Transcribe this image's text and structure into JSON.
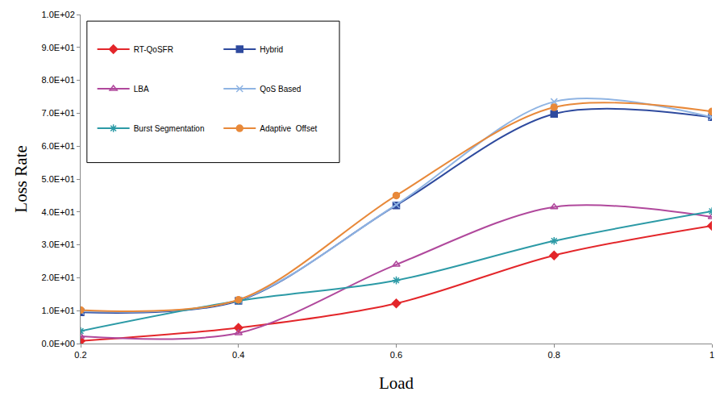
{
  "chart_data": {
    "type": "line",
    "x_label": "Load",
    "y_label": "Loss Rate",
    "x": [
      0.2,
      0.4,
      0.6,
      0.8,
      1
    ],
    "series": [
      {
        "name": "RT-QoSFR",
        "color": "#e3262a",
        "marker": "diamond",
        "values": [
          0.8,
          4.8,
          12.2,
          26.8,
          35.8
        ]
      },
      {
        "name": "Hybrid",
        "color": "#2e4a9e",
        "marker": "square",
        "values": [
          9.5,
          13.0,
          42.0,
          69.8,
          68.8
        ]
      },
      {
        "name": "LBA",
        "color": "#b0489c",
        "marker": "triangle-up-open",
        "values": [
          2.2,
          3.2,
          24.0,
          41.5,
          38.5
        ]
      },
      {
        "name": "QoS Based",
        "color": "#8fb4e3",
        "marker": "x-thin-open",
        "values": [
          9.8,
          13.2,
          42.2,
          73.5,
          68.8
        ]
      },
      {
        "name": "Burst Segmentation",
        "color": "#2c9aa6",
        "marker": "asterisk-open",
        "values": [
          3.8,
          13.0,
          19.2,
          31.2,
          40.2
        ]
      },
      {
        "name": "Adaptive  Offset",
        "color": "#e8893a",
        "marker": "circle",
        "values": [
          10.2,
          13.3,
          45.0,
          71.8,
          70.5
        ]
      }
    ],
    "xlim": [
      0.2,
      1
    ],
    "xticks": [
      0.2,
      0.4,
      0.6,
      0.8,
      1
    ],
    "ylim": [
      0,
      100
    ],
    "yticks": [
      {
        "value": 0,
        "label": "0.0E+00"
      },
      {
        "value": 10,
        "label": "1.0E+01"
      },
      {
        "value": 20,
        "label": "2.0E+01"
      },
      {
        "value": 30,
        "label": "3.0E+01"
      },
      {
        "value": 40,
        "label": "4.0E+01"
      },
      {
        "value": 50,
        "label": "5.0E+01"
      },
      {
        "value": 60,
        "label": "6.0E+01"
      },
      {
        "value": 70,
        "label": "7.0E+01"
      },
      {
        "value": 80,
        "label": "8.0E+01"
      },
      {
        "value": 90,
        "label": "9.0E+01"
      },
      {
        "value": 100,
        "label": "1.0E+02"
      }
    ],
    "grid": false,
    "legend": "upper left"
  }
}
